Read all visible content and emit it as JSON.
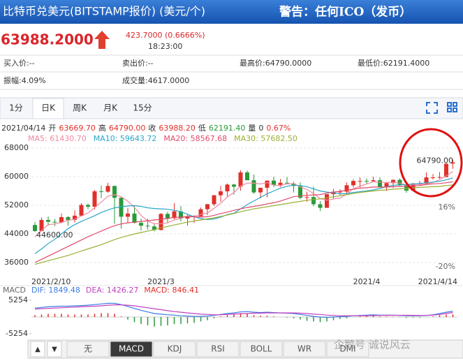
{
  "header": {
    "title": "比特币兑美元(BITSTAMP报价) (美元/个)",
    "warning": "警告：任何ICO（发币）"
  },
  "quote": {
    "price": "63988.2000",
    "change": "423.7000 (0.6666%)",
    "time": "18:23:00"
  },
  "info": {
    "rows": [
      [
        "买入价:--",
        "卖出价:--",
        "最高价:64790.0000",
        "最低价:62191.4000"
      ],
      [
        "振幅:4.09%",
        "成交量:4617.0000"
      ]
    ]
  },
  "tabs": {
    "items": [
      "1分",
      "日K",
      "周K",
      "月K",
      "15分"
    ],
    "active": 1
  },
  "indicator_tabs": {
    "nav": [
      "▲",
      "▼"
    ],
    "items": [
      "无",
      "MACD",
      "KDJ",
      "RSI",
      "BOLL",
      "WR",
      "DMI"
    ],
    "active": 1
  },
  "watermark": "企鹅号 诚说风云",
  "chart_data": [
    {
      "type": "candlestick",
      "info_line": [
        {
          "text": "2021/04/14",
          "color": "#333333"
        },
        {
          "text": "开",
          "color": "#333333"
        },
        {
          "text": "63669.70",
          "color": "#e0302a"
        },
        {
          "text": "高",
          "color": "#333333"
        },
        {
          "text": "64790.00",
          "color": "#e0302a"
        },
        {
          "text": "收",
          "color": "#333333"
        },
        {
          "text": "63988.20",
          "color": "#e0302a"
        },
        {
          "text": "低",
          "color": "#333333"
        },
        {
          "text": "62191.40",
          "color": "#2a9a3a"
        },
        {
          "text": "量",
          "color": "#333333"
        },
        {
          "text": "0",
          "color": "#333333"
        },
        {
          "text": "0.67%",
          "color": "#e0302a"
        }
      ],
      "up_color": "#e0302a",
      "down_color": "#2a9a3a",
      "ylim": [
        33270,
        69370
      ],
      "yticks": [
        36000,
        44000,
        52000,
        60000,
        68000
      ],
      "grid": true,
      "y2lim": [
        -23.4,
        55
      ],
      "y2ticks": [
        {
          "value": 16,
          "label": "16%"
        },
        {
          "value": -20,
          "label": "-20%"
        }
      ],
      "categories": [
        "2021/2/10",
        null,
        null,
        null,
        null,
        null,
        null,
        null,
        null,
        null,
        null,
        null,
        null,
        null,
        null,
        null,
        null,
        null,
        null,
        "2021/3",
        null,
        null,
        null,
        null,
        null,
        null,
        null,
        null,
        null,
        null,
        null,
        null,
        null,
        null,
        null,
        null,
        null,
        null,
        null,
        null,
        null,
        null,
        null,
        null,
        null,
        null,
        null,
        null,
        null,
        null,
        "2021/4",
        null,
        null,
        null,
        null,
        null,
        null,
        null,
        null,
        null,
        null,
        null,
        null,
        "2021/4/14"
      ],
      "open": [
        46500,
        44800,
        47900,
        47400,
        47200,
        48700,
        47900,
        49100,
        52100,
        51600,
        55900,
        55800,
        57400,
        54100,
        48800,
        49700,
        47100,
        46300,
        46100,
        45100,
        49600,
        48400,
        50300,
        48300,
        48800,
        48900,
        50900,
        52300,
        54800,
        55900,
        57800,
        57200,
        61200,
        59000,
        55600,
        56900,
        58900,
        57700,
        58300,
        58100,
        57400,
        54100,
        54300,
        52300,
        51300,
        55100,
        55800,
        55800,
        57600,
        58800,
        58800,
        58700,
        59000,
        57100,
        58200,
        59100,
        57600,
        56100,
        58100,
        58100,
        59800,
        59800,
        59900,
        63669.7
      ],
      "high": [
        47300,
        48600,
        48900,
        48200,
        49700,
        49000,
        50600,
        52600,
        52500,
        56300,
        57500,
        58300,
        57500,
        54200,
        51300,
        52000,
        48300,
        48300,
        46700,
        49800,
        50200,
        52600,
        51800,
        49400,
        49200,
        51400,
        52400,
        54900,
        57400,
        58100,
        58000,
        61800,
        61700,
        60600,
        56900,
        58900,
        60000,
        59400,
        59900,
        58600,
        58400,
        55800,
        57200,
        53200,
        55100,
        56600,
        56500,
        58400,
        59300,
        59800,
        59500,
        60000,
        59800,
        58500,
        59300,
        59500,
        58700,
        58200,
        58800,
        61200,
        60700,
        61300,
        63800,
        64790
      ],
      "low": [
        44600,
        44900,
        46300,
        46200,
        47000,
        46300,
        47200,
        48900,
        50900,
        50800,
        54000,
        55500,
        46800,
        45500,
        47100,
        46900,
        44900,
        45200,
        44700,
        45000,
        47100,
        48100,
        47500,
        46300,
        47100,
        48900,
        49300,
        51800,
        53000,
        54300,
        55000,
        56100,
        59000,
        55200,
        53900,
        54200,
        57100,
        57100,
        57900,
        55600,
        53700,
        53000,
        51700,
        50400,
        51300,
        53900,
        54700,
        54900,
        57000,
        56900,
        57900,
        58500,
        56900,
        56000,
        56800,
        57400,
        55500,
        55900,
        57700,
        57900,
        59200,
        59400,
        59800,
        62191.4
      ],
      "close": [
        44800,
        47900,
        47400,
        47200,
        48700,
        47900,
        49100,
        52100,
        51600,
        55900,
        55800,
        57400,
        54100,
        48800,
        49700,
        47100,
        46300,
        46100,
        45100,
        49600,
        48400,
        50300,
        48300,
        48800,
        48900,
        50900,
        52300,
        54800,
        55900,
        57800,
        57200,
        61200,
        59000,
        55600,
        56900,
        58900,
        57700,
        58300,
        58100,
        57400,
        54100,
        54300,
        52300,
        51300,
        55100,
        55800,
        55800,
        57600,
        58800,
        58800,
        58700,
        59000,
        57100,
        58200,
        59100,
        57600,
        56100,
        58100,
        58100,
        59800,
        59800,
        59900,
        63600,
        63988.2
      ],
      "series": [
        {
          "legend": "MA5: 61430.70",
          "color": "#f08aa0",
          "values": [
            43180,
            44900,
            46600,
            46760,
            47200,
            47820,
            48060,
            49000,
            49880,
            51320,
            52900,
            54560,
            54960,
            54400,
            53160,
            51420,
            49200,
            47600,
            46860,
            46840,
            47100,
            47900,
            48340,
            49080,
            48940,
            49440,
            49840,
            51140,
            52560,
            54340,
            55600,
            57380,
            58220,
            58160,
            57980,
            58320,
            57620,
            57480,
            57980,
            58080,
            57120,
            56440,
            55240,
            53880,
            53420,
            53760,
            54060,
            55120,
            56620,
            57360,
            57940,
            58580,
            58480,
            58360,
            58420,
            58200,
            57620,
            57820,
            57800,
            57940,
            58380,
            59140,
            60240,
            61430.7
          ]
        },
        {
          "legend": "MA10: 59643.72",
          "color": "#2aa6c8",
          "values": [
            38500,
            39800,
            41300,
            42500,
            44000,
            45500,
            46600,
            47500,
            48300,
            49100,
            50000,
            50700,
            51300,
            51600,
            51800,
            51900,
            51700,
            51300,
            51100,
            51000,
            50900,
            50600,
            50200,
            49500,
            48800,
            48300,
            48000,
            48200,
            48700,
            49400,
            49800,
            51000,
            52200,
            53200,
            54200,
            55200,
            56000,
            56800,
            57300,
            57700,
            57500,
            57200,
            56600,
            56000,
            55700,
            55500,
            55200,
            55300,
            55600,
            55800,
            56000,
            56300,
            56700,
            57200,
            57600,
            57700,
            57800,
            58000,
            58100,
            58300,
            58500,
            58700,
            59100,
            59643.72
          ]
        },
        {
          "legend": "MA20: 58567.68",
          "color": "#e04a6a",
          "values": [
            36000,
            36900,
            37800,
            38700,
            39600,
            40500,
            41400,
            42300,
            43200,
            44000,
            44800,
            45600,
            46300,
            46800,
            47100,
            47300,
            47500,
            47700,
            47900,
            48100,
            48300,
            48600,
            48700,
            48800,
            48800,
            48700,
            48800,
            49200,
            49700,
            50100,
            50600,
            51000,
            51400,
            51700,
            52000,
            52400,
            52700,
            53200,
            53800,
            54400,
            54600,
            54800,
            54900,
            55000,
            55400,
            55700,
            55900,
            56200,
            56500,
            56800,
            56900,
            57100,
            57100,
            57100,
            57200,
            57300,
            57300,
            57400,
            57500,
            57800,
            58000,
            58100,
            58300,
            58567.68
          ]
        },
        {
          "legend": "MA30: 57682.50",
          "color": "#9ab033",
          "values": [
            35500,
            36000,
            36500,
            37000,
            37500,
            38000,
            38600,
            39200,
            39800,
            40400,
            41000,
            41700,
            42400,
            43000,
            43500,
            44000,
            44400,
            44800,
            45200,
            45700,
            46100,
            46500,
            46900,
            47300,
            47600,
            47900,
            48200,
            48500,
            48900,
            49300,
            49700,
            50200,
            50600,
            51000,
            51300,
            51600,
            51900,
            52200,
            52500,
            52800,
            53100,
            53400,
            53600,
            53800,
            54100,
            54400,
            54700,
            55000,
            55300,
            55600,
            55800,
            56000,
            56200,
            56300,
            56500,
            56600,
            56700,
            56900,
            57000,
            57100,
            57200,
            57300,
            57500,
            57682.5
          ]
        }
      ],
      "annotations": [
        {
          "text": "64790.00",
          "index": 63,
          "value": 64790
        },
        {
          "text": "44600.00",
          "index": 0,
          "value": 44600
        }
      ]
    },
    {
      "type": "macd",
      "legend": [
        {
          "text": "MACD",
          "color": "#666666"
        },
        {
          "text": "DIF: 1849.48",
          "color": "#3c7be0"
        },
        {
          "text": "DEA: 1426.27",
          "color": "#c040c0"
        },
        {
          "text": "MACD: 846.41",
          "color": "#e0302a"
        }
      ],
      "ylim": [
        -7005,
        7005
      ],
      "yticks": [
        5254,
        -5254
      ],
      "up_color": "#e0302a",
      "down_color": "#2a9a3a",
      "series": [
        {
          "name": "DIF",
          "color": "#3c7be0",
          "values": [
            2800,
            3000,
            3200,
            3300,
            3400,
            3400,
            3500,
            3600,
            3700,
            3900,
            4100,
            4300,
            4300,
            3900,
            3300,
            2700,
            2100,
            1600,
            1100,
            900,
            700,
            600,
            400,
            300,
            200,
            200,
            300,
            500,
            800,
            1100,
            1300,
            1600,
            1700,
            1500,
            1400,
            1500,
            1400,
            1300,
            1200,
            1100,
            800,
            500,
            200,
            0,
            -100,
            0,
            100,
            200,
            400,
            500,
            600,
            700,
            600,
            600,
            600,
            500,
            400,
            400,
            400,
            500,
            700,
            1100,
            1500,
            1849.48
          ]
        },
        {
          "name": "DEA",
          "color": "#c040c0",
          "values": [
            2500,
            2600,
            2700,
            2800,
            2900,
            3000,
            3100,
            3200,
            3300,
            3400,
            3500,
            3700,
            3800,
            3800,
            3700,
            3500,
            3200,
            2900,
            2600,
            2300,
            2000,
            1700,
            1500,
            1300,
            1100,
            900,
            800,
            700,
            700,
            800,
            900,
            1000,
            1100,
            1200,
            1200,
            1300,
            1300,
            1300,
            1300,
            1300,
            1200,
            1100,
            900,
            800,
            600,
            500,
            400,
            400,
            400,
            400,
            400,
            450,
            500,
            520,
            540,
            550,
            540,
            520,
            510,
            510,
            600,
            800,
            1100,
            1426.27
          ]
        }
      ],
      "bars": [
        600,
        800,
        1000,
        1000,
        1000,
        800,
        800,
        800,
        800,
        1000,
        1200,
        1200,
        1000,
        200,
        -800,
        -1600,
        -2200,
        -2600,
        -3000,
        -2800,
        -2600,
        -2200,
        -2200,
        -2000,
        -1800,
        -1400,
        -1000,
        -400,
        200,
        600,
        800,
        1200,
        1200,
        600,
        400,
        400,
        200,
        0,
        -200,
        -400,
        -800,
        -1200,
        -1400,
        -1600,
        -1400,
        -1000,
        -600,
        -400,
        0,
        200,
        400,
        500,
        200,
        160,
        120,
        -100,
        -280,
        -240,
        -220,
        -20,
        200,
        600,
        800,
        846.41
      ]
    }
  ]
}
